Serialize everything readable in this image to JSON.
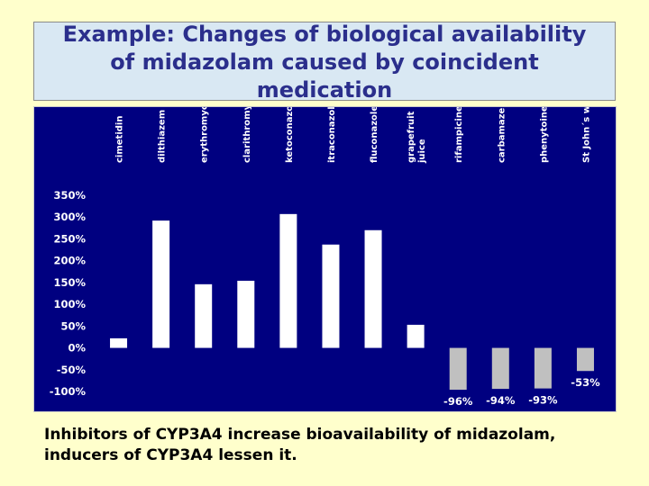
{
  "slide": {
    "title_lines": [
      "Example: Changes of biological availability",
      "of midazolam caused by coincident",
      "medication"
    ],
    "caption_lines": [
      "Inhibitors of CYP3A4 increase bioavailability of midazolam,",
      "inducers of CYP3A4 lessen it."
    ]
  },
  "chart_data": {
    "type": "bar",
    "categories": [
      [
        "cimetidin"
      ],
      [
        "dilthiazem"
      ],
      [
        "erythromycin"
      ],
      [
        "clarithromycin"
      ],
      [
        "ketoconazole"
      ],
      [
        "itraconazole"
      ],
      [
        "fluconazole"
      ],
      [
        "grapefruit",
        "juice"
      ],
      [
        "rifampicine"
      ],
      [
        "carbamazepine"
      ],
      [
        "phenytoine"
      ],
      [
        "St John´s wort"
      ]
    ],
    "values": [
      22,
      292,
      146,
      154,
      307,
      237,
      270,
      53,
      -96,
      -94,
      -93,
      -53
    ],
    "data_labels": [
      "",
      "",
      "",
      "",
      "",
      "",
      "",
      "",
      "-96%",
      "-94%",
      "-93%",
      "-53%"
    ],
    "ytick_labels": [
      "350%",
      "300%",
      "250%",
      "200%",
      "150%",
      "100%",
      "50%",
      "0%",
      "-50%",
      "-100%"
    ],
    "ylim": [
      -100,
      350
    ],
    "colors": {
      "background": "#000080",
      "increase_bar": "#ffffff",
      "decrease_bar": "#c0c0c0",
      "text": "#ffffff"
    }
  }
}
